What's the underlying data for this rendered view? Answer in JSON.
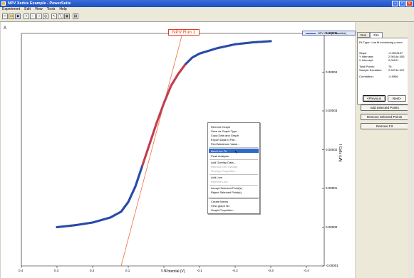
{
  "window": {
    "title": "NPV Xerkis Example - PowerSuite"
  },
  "menu": [
    "Experiment",
    "Edit",
    "View",
    "Tools",
    "Help"
  ],
  "toolbar": {
    "icons": [
      "new-icon",
      "open-icon",
      "save-icon",
      "zoom-in-icon",
      "zoom-out-icon",
      "zoom-fit-icon",
      "zoom-region-icon",
      "cursor-icon",
      "line-icon",
      "grid-icon",
      "export-icon"
    ]
  },
  "graph": {
    "title": "NPV Run 1",
    "legend": "NPV Run1(a Baseline)",
    "xlabel": "Potential (V)",
    "ylabel": "I Cells (uA)",
    "corner_mark": "A"
  },
  "chart_data": {
    "type": "scatter",
    "title": "NPV Run 1",
    "xlabel": "Potential (V)",
    "ylabel": "I Cells (uA)",
    "x_ticks": [
      "0.4",
      "0.3",
      "0.2",
      "0.1",
      "0.0",
      "-0.1",
      "-0.2",
      "-0.3",
      "-0.4"
    ],
    "y_ticks": [
      "0.00005",
      "0.00004",
      "0.00003",
      "0.00002",
      "0.00001",
      "0.00000",
      "-0.00001"
    ],
    "xlim": [
      0.4,
      -0.45
    ],
    "ylim": [
      -1e-05,
      5e-05
    ],
    "series": [
      {
        "name": "NPV Run1(a Baseline)",
        "color": "#2a4aa8",
        "x": [
          0.3,
          0.25,
          0.2,
          0.15,
          0.12,
          0.1,
          0.08,
          0.06,
          0.04,
          0.02,
          0.0,
          -0.02,
          -0.04,
          -0.06,
          -0.08,
          -0.1,
          -0.15,
          -0.2,
          -0.25,
          -0.3
        ],
        "y": [
          0.0,
          5e-07,
          1.2e-06,
          2.5e-06,
          4e-06,
          6.5e-06,
          1.05e-05,
          1.6e-05,
          2.15e-05,
          2.7e-05,
          3.2e-05,
          3.65e-05,
          3.95e-05,
          4.2e-05,
          4.38e-05,
          4.48e-05,
          4.62e-05,
          4.72e-05,
          4.77e-05,
          4.8e-05
        ]
      },
      {
        "name": "Linear fit",
        "color": "#f07040",
        "x": [
          0.12,
          -0.052
        ],
        "y": [
          -1e-05,
          5e-05
        ]
      }
    ],
    "grid": false,
    "legend_position": "top-right"
  },
  "context_menu": {
    "items": [
      {
        "label": "Remove Graph",
        "enabled": true
      },
      {
        "label": "Save as Graph Type...",
        "enabled": true
      },
      {
        "label": "Copy Data and Graph",
        "enabled": true
      },
      {
        "label": "Export Data to File...",
        "enabled": true
      },
      {
        "label": "Find Maximum Value...",
        "enabled": true
      },
      {
        "label": "Best Line Fit",
        "enabled": true,
        "selected": true
      },
      {
        "label": "Peak Analysis",
        "enabled": true
      },
      {
        "label": "Add Overlay Data...",
        "enabled": true
      },
      {
        "label": "Remove Ovr Overlay",
        "enabled": false
      },
      {
        "label": "Overlay Properties...",
        "enabled": false
      },
      {
        "label": "Add Line",
        "enabled": true
      },
      {
        "label": "Remove Line",
        "enabled": false
      },
      {
        "label": "Accept Selected Point(s)",
        "enabled": true
      },
      {
        "label": "Reject Selected Point(s)",
        "enabled": true
      },
      {
        "label": "Create Memo",
        "enabled": true
      },
      {
        "label": "View graph 3D",
        "enabled": true
      },
      {
        "label": "Graph Properties...",
        "enabled": true
      }
    ]
  },
  "panel": {
    "tabs": [
      "Run",
      "Fits"
    ],
    "fit_type": "Fit Type:  Line fit minimizing y error",
    "fields": [
      {
        "label": "Slope:",
        "value": "-0.0003137"
      },
      {
        "label": "Y Intercept:",
        "value": "2.9014e-005"
      },
      {
        "label": "X Intercept:",
        "value": "0.09121"
      },
      {
        "label": "Total Points:",
        "value": "78"
      },
      {
        "label": "Sample Deviation:",
        "value": "2.5374e-007"
      },
      {
        "label": "Correlation:",
        "value": "-0.9956"
      }
    ],
    "nav": {
      "prev": "<Previous",
      "next": "Next>"
    },
    "buttons": [
      "Add Selected Points",
      "Remove Selected Points",
      "Remove Fit"
    ]
  }
}
